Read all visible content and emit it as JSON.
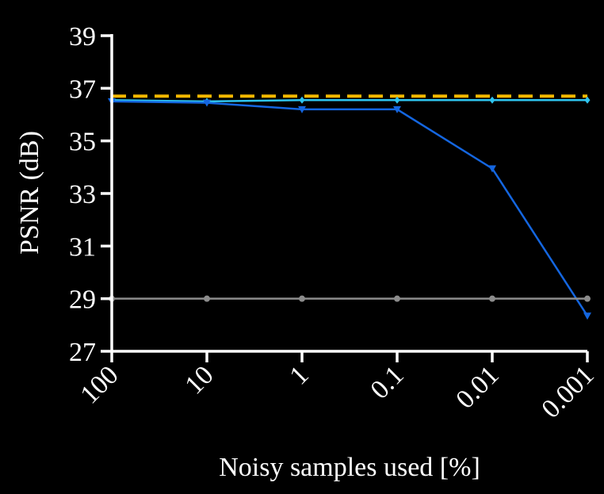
{
  "chart_data": {
    "type": "line",
    "title": "",
    "xlabel": "Noisy samples used [%]",
    "ylabel": "PSNR (dB)",
    "categories": [
      "100",
      "10",
      "1",
      "0.1",
      "0.01",
      "0.001"
    ],
    "y_ticks": [
      "39",
      "37",
      "35",
      "33",
      "31",
      "29",
      "27"
    ],
    "ylim": [
      27,
      39
    ],
    "grid": false,
    "legend": "none",
    "series": [
      {
        "values": [
          36.7,
          36.7,
          36.7,
          36.7,
          36.7,
          36.7
        ],
        "color": "#f5b800",
        "style": "dashed",
        "marker": "none"
      },
      {
        "values": [
          36.55,
          36.5,
          36.55,
          36.55,
          36.55,
          36.55
        ],
        "color": "#2ec4f0",
        "style": "solid",
        "marker": "diamond"
      },
      {
        "values": [
          36.5,
          36.45,
          36.2,
          36.2,
          33.95,
          28.35
        ],
        "color": "#1466e0",
        "style": "solid",
        "marker": "triangle-down"
      },
      {
        "values": [
          29.0,
          29.0,
          29.0,
          29.0,
          29.0,
          29.0
        ],
        "color": "#8c8c8c",
        "style": "solid",
        "marker": "circle"
      }
    ]
  }
}
